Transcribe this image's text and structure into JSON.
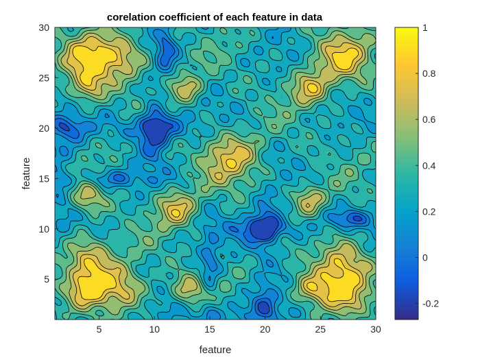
{
  "chart_data": {
    "type": "heatmap",
    "subtype": "filled-contour",
    "title": "corelation coefficient of each feature in data",
    "xlabel": "feature",
    "ylabel": "feature",
    "xlim": [
      1,
      30
    ],
    "ylim": [
      1,
      30
    ],
    "xticks": [
      5,
      10,
      15,
      20,
      25,
      30
    ],
    "yticks": [
      5,
      10,
      15,
      20,
      25,
      30
    ],
    "colorbar": {
      "limits": [
        -0.27,
        1.0
      ],
      "ticks": [
        -0.2,
        0,
        0.2,
        0.4,
        0.6,
        0.8,
        1
      ],
      "tick_labels": [
        "-0.2",
        "0",
        "0.2",
        "0.4",
        "0.6",
        "0.8",
        "1"
      ],
      "colormap": "parula",
      "colors": [
        "#352A87",
        "#0F5CDD",
        "#1481D6",
        "#06A4CA",
        "#2EB7A4",
        "#87BF77",
        "#D1BB59",
        "#FEC832",
        "#F9FB0E"
      ]
    },
    "contour_levels": [
      -0.1,
      0.0,
      0.1,
      0.2,
      0.3,
      0.4,
      0.5,
      0.6,
      0.7,
      0.8
    ],
    "symmetric": true,
    "grid": false
  }
}
